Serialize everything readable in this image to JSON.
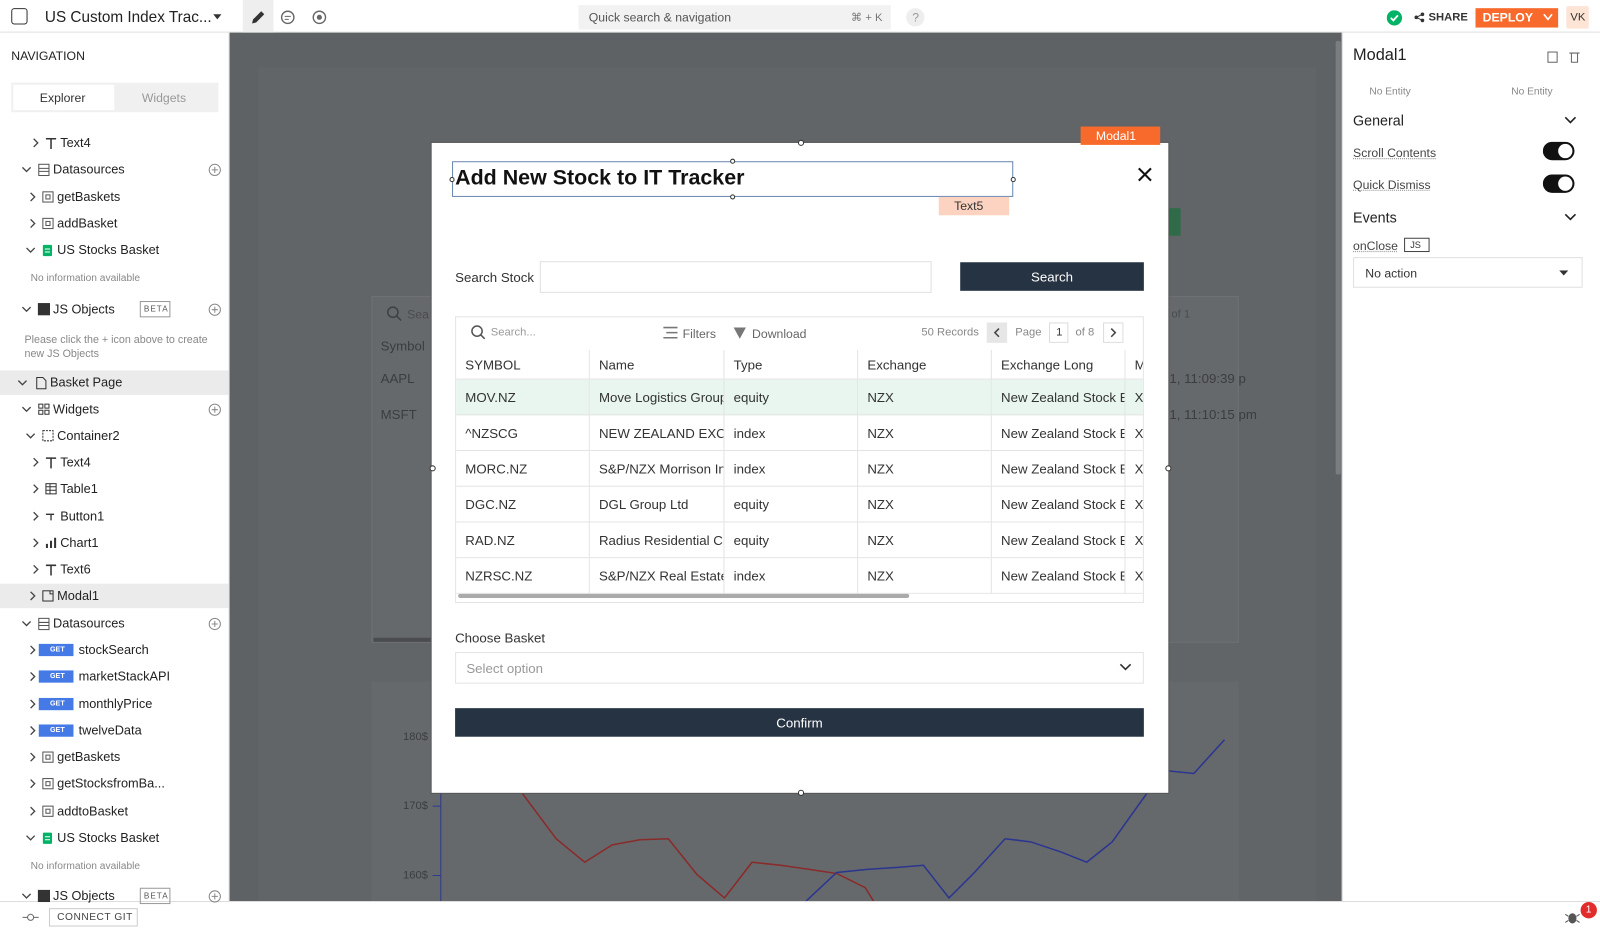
{
  "topbar": {
    "app_name": "US Custom Index Trac...",
    "search_placeholder": "Quick search & navigation",
    "search_shortcut": "⌘ + K",
    "help": "?",
    "share": "SHARE",
    "deploy": "DEPLOY",
    "avatar": "VK"
  },
  "sidebar": {
    "title": "NAVIGATION",
    "tabs": [
      "Explorer",
      "Widgets"
    ],
    "items": [
      {
        "label": "Text4"
      },
      {
        "label": "Datasources"
      },
      {
        "label": "getBaskets"
      },
      {
        "label": "addBasket"
      },
      {
        "label": "US Stocks Basket"
      },
      {
        "label": "No information available"
      },
      {
        "label": "JS Objects",
        "badge": "BETA"
      },
      {
        "label": "Please click the + icon above to create new JS Objects"
      },
      {
        "label": "Basket Page"
      },
      {
        "label": "Widgets"
      },
      {
        "label": "Container2"
      },
      {
        "label": "Text4"
      },
      {
        "label": "Table1"
      },
      {
        "label": "Button1"
      },
      {
        "label": "Chart1"
      },
      {
        "label": "Text6"
      },
      {
        "label": "Modal1"
      },
      {
        "label": "Datasources"
      },
      {
        "label": "stockSearch",
        "badge": "GET"
      },
      {
        "label": "marketStackAPI",
        "badge": "GET"
      },
      {
        "label": "monthlyPrice",
        "badge": "GET"
      },
      {
        "label": "twelveData",
        "badge": "GET"
      },
      {
        "label": "getBaskets"
      },
      {
        "label": "getStocksfromBa..."
      },
      {
        "label": "addtoBasket"
      },
      {
        "label": "US Stocks Basket"
      },
      {
        "label": "No information available"
      },
      {
        "label": "JS Objects",
        "badge": "BETA"
      }
    ]
  },
  "footer": {
    "connect_git": "CONNECT GIT",
    "notifications": "1"
  },
  "canvas": {
    "search": "Sea",
    "column": "Symbol",
    "rows": [
      "AAPL",
      "MSFT"
    ],
    "times": [
      "1, 11:09:39 p",
      "1, 11:10:15 pm"
    ],
    "pagination": "of 1",
    "chart_yticks": [
      "180$",
      "170$",
      "160$"
    ]
  },
  "modal": {
    "tag": "Modal1",
    "title": "Add New Stock to IT Tracker",
    "title_tag": "Text5",
    "search_label": "Search Stock",
    "search_button": "Search",
    "table": {
      "search": "Search...",
      "filters": "Filters",
      "download": "Download",
      "records": "50 Records",
      "page_label": "Page",
      "page": "1",
      "of_pages": "of 8",
      "columns": [
        "SYMBOL",
        "Name",
        "Type",
        "Exchange",
        "Exchange Long",
        "M"
      ],
      "rows": [
        [
          "MOV.NZ",
          "Move Logistics Group",
          "equity",
          "NZX",
          "New Zealand Stock Ex",
          "X"
        ],
        [
          "^NZSCG",
          "NEW ZEALAND EXCH",
          "index",
          "NZX",
          "New Zealand Stock Ex",
          "X"
        ],
        [
          "MORC.NZ",
          "S&P/NZX Morrison Inc",
          "index",
          "NZX",
          "New Zealand Stock Ex",
          "X"
        ],
        [
          "DGC.NZ",
          "DGL Group Ltd",
          "equity",
          "NZX",
          "New Zealand Stock Ex",
          "X"
        ],
        [
          "RAD.NZ",
          "Radius Residential Ca",
          "equity",
          "NZX",
          "New Zealand Stock Ex",
          "X"
        ],
        [
          "NZRSC.NZ",
          "S&P/NZX Real Estate",
          "index",
          "NZX",
          "New Zealand Stock Ex",
          "X"
        ]
      ]
    },
    "basket_label": "Choose Basket",
    "basket_placeholder": "Select option",
    "confirm": "Confirm"
  },
  "properties": {
    "title": "Modal1",
    "entity_left": "No Entity",
    "entity_right": "No Entity",
    "general": "General",
    "scroll_contents": "Scroll Contents",
    "quick_dismiss": "Quick Dismiss",
    "events": "Events",
    "on_close": "onClose",
    "js_badge": "JS",
    "action": "No action"
  }
}
